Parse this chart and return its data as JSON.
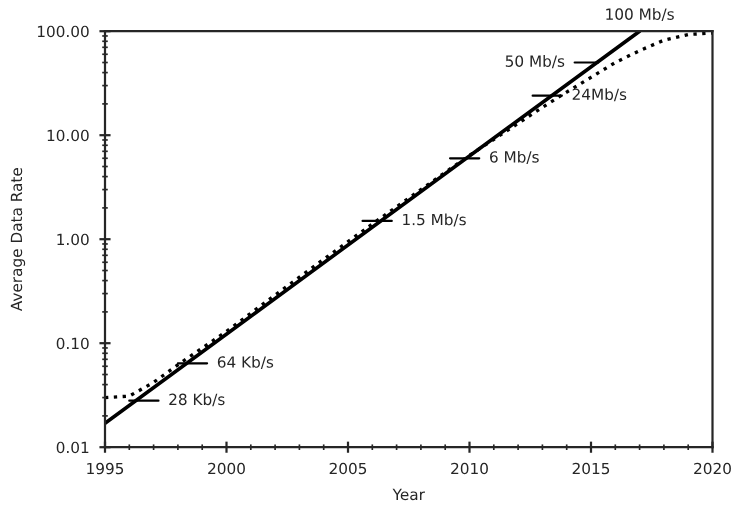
{
  "chart_data": {
    "type": "line",
    "xlabel": "Year",
    "ylabel": "Average Data Rate",
    "log": "y",
    "xlim": [
      1995,
      2020
    ],
    "xticks": [
      1995,
      2000,
      2005,
      2010,
      2015,
      2020
    ],
    "ylim": [
      0.01,
      100
    ],
    "yticks": [
      {
        "value": 0.01,
        "label": "0.01"
      },
      {
        "value": 0.1,
        "label": "0.10"
      },
      {
        "value": 1,
        "label": "1.00"
      },
      {
        "value": 10,
        "label": "10.00"
      },
      {
        "value": 100,
        "label": "100.00"
      }
    ],
    "grid": false,
    "legend": false,
    "marker": "none",
    "series": [
      {
        "color": "#000000",
        "line_style": "solid",
        "x": [
          1995,
          2017
        ],
        "values": [
          0.017,
          100
        ]
      },
      {
        "color": "#000000",
        "line_style": "dotted",
        "x": [
          1995,
          1996,
          1997,
          1998,
          2000,
          2002,
          2004,
          2006,
          2008,
          2010,
          2012,
          2013,
          2014,
          2015,
          2016,
          2017,
          2018,
          2019,
          2020
        ],
        "values": [
          0.03,
          0.031,
          0.042,
          0.062,
          0.13,
          0.29,
          0.64,
          1.4,
          3.0,
          6.4,
          13,
          18.5,
          26,
          36,
          50,
          65,
          82,
          93,
          96
        ]
      }
    ],
    "annotations": [
      {
        "text": "28 Kb/s",
        "x": 1996,
        "y": 0.028
      },
      {
        "text": "64 Kb/s",
        "x": 1998,
        "y": 0.064
      },
      {
        "text": "1.5 Mb/s",
        "x": 2005.6,
        "y": 1.5
      },
      {
        "text": "6 Mb/s",
        "x": 2009.2,
        "y": 6
      },
      {
        "text": "24Mb/s",
        "x": 2012.6,
        "y": 24
      },
      {
        "text": "50 Mb/s",
        "x": 2015.3,
        "y": 50
      },
      {
        "text": "100 Mb/s",
        "x": 2017,
        "y": 100
      }
    ]
  }
}
